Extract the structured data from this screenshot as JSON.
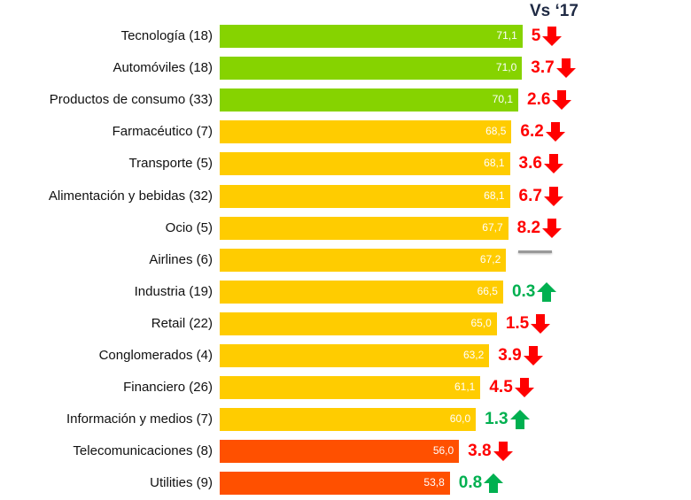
{
  "chart_data": {
    "type": "bar",
    "orientation": "horizontal",
    "column_header": "Vs ‘17",
    "categories": [
      "Tecnología (18)",
      "Automóviles (18)",
      "Productos de consumo (33)",
      "Farmacéutico (7)",
      "Transporte (5)",
      "Alimentación y bebidas (32)",
      "Ocio (5)",
      "Airlines (6)",
      "Industria (19)",
      "Retail (22)",
      "Conglomerados (4)",
      "Financiero (26)",
      "Información y medios (7)",
      "Telecomunicaciones (8)",
      "Utilities (9)"
    ],
    "values": [
      71.1,
      71.0,
      70.1,
      68.5,
      68.1,
      68.1,
      67.7,
      67.2,
      66.5,
      65.0,
      63.2,
      61.1,
      60.0,
      56.0,
      53.8
    ],
    "value_labels": [
      "71,1",
      "71,0",
      "70,1",
      "68,5",
      "68,1",
      "68,1",
      "67,7",
      "67,2",
      "66,5",
      "65,0",
      "63,2",
      "61,1",
      "60,0",
      "56,0",
      "53,8"
    ],
    "change_labels": [
      "5",
      "3.7",
      "2.6",
      "6.2",
      "3.6",
      "6.7",
      "8.2",
      "",
      "0.3",
      "1.5",
      "3.9",
      "4.5",
      "1.3",
      "3.8",
      "0.8"
    ],
    "change_direction": [
      "down",
      "down",
      "down",
      "down",
      "down",
      "down",
      "down",
      "flat",
      "up",
      "down",
      "down",
      "down",
      "up",
      "down",
      "up"
    ],
    "bar_colors": [
      "#86d300",
      "#86d300",
      "#86d300",
      "#ffcc00",
      "#ffcc00",
      "#ffcc00",
      "#ffcc00",
      "#ffcc00",
      "#ffcc00",
      "#ffcc00",
      "#ffcc00",
      "#ffcc00",
      "#ffcc00",
      "#ff5000",
      "#ff5000"
    ],
    "colors": {
      "down": "#ff0000",
      "up": "#00b050",
      "flat": "#999999"
    },
    "grid": false
  }
}
